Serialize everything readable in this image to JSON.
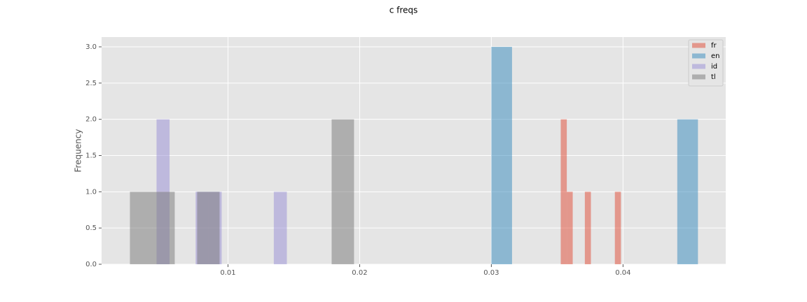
{
  "chart_data": {
    "type": "histogram",
    "title": "c freqs",
    "y_label": "Frequency",
    "xlim": [
      0.0004,
      0.0478
    ],
    "ylim": [
      0,
      3.135
    ],
    "xticks": [
      0.01,
      0.02,
      0.03,
      0.04
    ],
    "yticks": [
      {
        "value": 0,
        "label": "0.0"
      },
      {
        "value": 0.5,
        "label": "0.5"
      },
      {
        "value": 1,
        "label": "1.0"
      },
      {
        "value": 1.5,
        "label": "1.5"
      },
      {
        "value": 2,
        "label": "2.0"
      },
      {
        "value": 2.5,
        "label": "2.5"
      },
      {
        "value": 3,
        "label": "3.0"
      }
    ],
    "grid": true,
    "legend": "upper right",
    "alpha": 0.5,
    "series": [
      {
        "name": "fr",
        "color": "#E24A33",
        "bins": [
          0.03527,
          0.03573,
          0.03618,
          0.03664,
          0.0371,
          0.03756,
          0.03801,
          0.03847,
          0.03893,
          0.03938,
          0.03984
        ],
        "values": [
          2,
          1,
          0,
          0,
          1,
          0,
          0,
          0,
          0,
          1
        ]
      },
      {
        "name": "en",
        "color": "#348ABD",
        "bins": [
          0.03,
          0.03157,
          0.03314,
          0.03471,
          0.03628,
          0.03785,
          0.03941,
          0.04098,
          0.04255,
          0.04412,
          0.04569
        ],
        "values": [
          3,
          0,
          0,
          0,
          0,
          0,
          0,
          0,
          0,
          2
        ]
      },
      {
        "name": "id",
        "color": "#988ED5",
        "bins": [
          0.004574,
          0.005563,
          0.006553,
          0.007542,
          0.008532,
          0.009521,
          0.01051,
          0.0115,
          0.01249,
          0.01348,
          0.01447
        ],
        "values": [
          2,
          0,
          0,
          1,
          1,
          0,
          0,
          0,
          0,
          1
        ]
      },
      {
        "name": "tl",
        "color": "#777777",
        "bins": [
          0.002553,
          0.004255,
          0.005957,
          0.007659,
          0.009361,
          0.011064,
          0.012766,
          0.014468,
          0.01617,
          0.017872,
          0.019574
        ],
        "values": [
          1,
          1,
          0,
          1,
          0,
          0,
          0,
          0,
          0,
          2
        ]
      }
    ]
  }
}
